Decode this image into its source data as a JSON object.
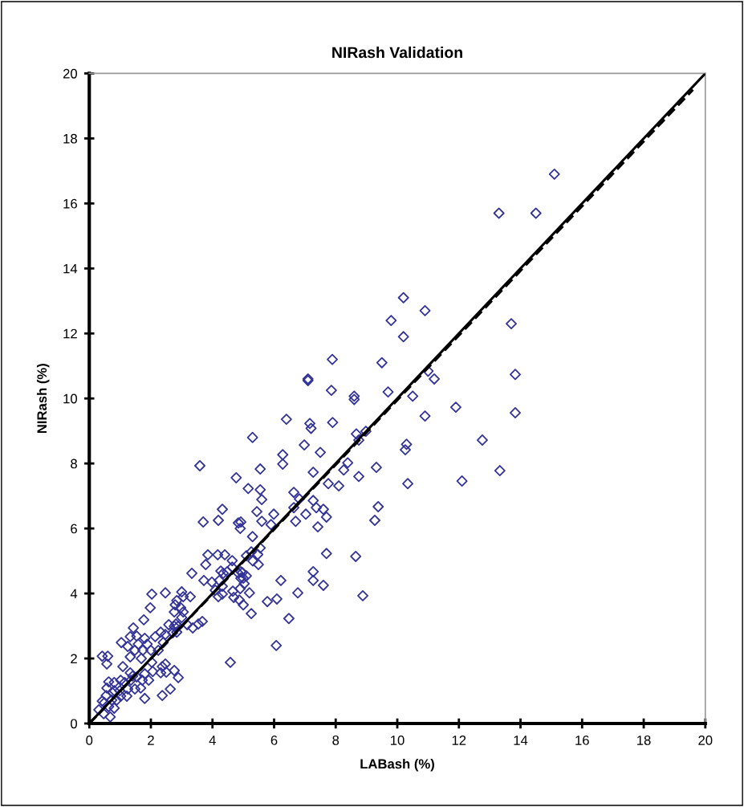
{
  "chart_data": {
    "type": "scatter",
    "title": "NIRash Validation",
    "xlabel": "LABash (%)",
    "ylabel": "NIRash (%)",
    "xlim": [
      0,
      20
    ],
    "ylim": [
      0,
      20
    ],
    "xticks": [
      0,
      2,
      4,
      6,
      8,
      10,
      12,
      14,
      16,
      18,
      20
    ],
    "yticks": [
      0,
      2,
      4,
      6,
      8,
      10,
      12,
      14,
      16,
      18,
      20
    ],
    "grid": false,
    "legend": false,
    "series": [
      {
        "color": "#333399",
        "marker": "diamond",
        "x": [
          15.1,
          13.3,
          14.5,
          10.2,
          10.9,
          9.8,
          13.7,
          10.2,
          9.5,
          7.89,
          7.1,
          7.1,
          7.86,
          8.6,
          8.6,
          9.7,
          11.0,
          11.2,
          10.5,
          11.9,
          10.9,
          6.4,
          7.16,
          7.2,
          7.9,
          8.67,
          8.75,
          8.98,
          5.3,
          6.98,
          7.5,
          6.28,
          6.28,
          5.55,
          7.27,
          8.39,
          8.26,
          8.75,
          9.32,
          10.3,
          10.26,
          12.76,
          5.16,
          5.55,
          5.6,
          7.76,
          8.1,
          10.34,
          12.1,
          6.64,
          6.82,
          5.44,
          5.99,
          5.6,
          5.9,
          6.64,
          6.7,
          7.03,
          7.27,
          7.37,
          7.6,
          7.7,
          7.42,
          9.38,
          9.27,
          7.7,
          8.65,
          7.27,
          7.27,
          7.6,
          6.22,
          6.77,
          8.88,
          5.78,
          6.09,
          6.48,
          6.07,
          5.3,
          5.47,
          5.26,
          5.1,
          5.31,
          5.49,
          4.92,
          4.92,
          5.0,
          5.1,
          5.03,
          5.2,
          5.0,
          5.26,
          13.83,
          13.83,
          13.33,
          3.59,
          4.77,
          4.32,
          3.7,
          4.19,
          4.84,
          4.9,
          5.55,
          3.85,
          4.17,
          4.4,
          3.78,
          4.64,
          4.64,
          3.33,
          4.27,
          4.35,
          4.48,
          4.82,
          4.97,
          4.92,
          3.72,
          3.98,
          4.22,
          4.32,
          4.09,
          4.19,
          4.32,
          4.66,
          4.9,
          4.69,
          4.87,
          4.58,
          2.03,
          2.47,
          1.98,
          1.77,
          1.43,
          1.33,
          1.54,
          1.04,
          1.25,
          1.8,
          1.88,
          1.59,
          1.48,
          1.74,
          2.0,
          2.14,
          1.33,
          1.69,
          2.32,
          2.47,
          2.4,
          2.24,
          2.58,
          2.81,
          3.0,
          3.05,
          3.28,
          3.0,
          2.76,
          2.79,
          2.84,
          2.97,
          3.05,
          2.76,
          2.71,
          2.89,
          2.84,
          3.18,
          3.36,
          3.54,
          3.67,
          2.03,
          2.37,
          2.06,
          2.32,
          2.5,
          2.47,
          2.76,
          2.89,
          2.63,
          2.37,
          1.8,
          1.93,
          1.72,
          1.54,
          1.41,
          1.09,
          1.33,
          1.35,
          1.15,
          1.02,
          0.81,
          1.48,
          1.67,
          1.8,
          1.25,
          1.22,
          0.99,
          0.81,
          0.63,
          0.42,
          0.6,
          0.57,
          0.57,
          0.76,
          0.55,
          0.42,
          0.49,
          0.73,
          0.63,
          0.81,
          0.31,
          0.47,
          0.68,
          1.02,
          0.89
        ],
        "values": [
          16.9,
          15.7,
          15.7,
          13.1,
          12.7,
          12.4,
          12.3,
          11.9,
          11.1,
          11.2,
          10.6,
          10.55,
          10.25,
          10.07,
          9.97,
          10.2,
          10.84,
          10.6,
          10.07,
          9.73,
          9.46,
          9.36,
          9.23,
          9.08,
          9.26,
          8.91,
          8.72,
          8.99,
          8.8,
          8.57,
          8.34,
          8.27,
          7.98,
          7.83,
          7.73,
          8.02,
          7.8,
          7.6,
          7.88,
          8.59,
          8.42,
          8.72,
          7.23,
          7.19,
          6.89,
          7.38,
          7.31,
          7.38,
          7.46,
          7.11,
          6.91,
          6.52,
          6.44,
          6.22,
          6.12,
          6.64,
          6.22,
          6.44,
          6.86,
          6.64,
          6.59,
          6.35,
          6.05,
          6.67,
          6.25,
          5.23,
          5.14,
          4.67,
          4.4,
          4.25,
          4.4,
          4.02,
          3.93,
          3.75,
          3.83,
          3.23,
          2.4,
          5.75,
          5.2,
          5.28,
          5.16,
          5.0,
          4.89,
          6.2,
          4.67,
          4.47,
          4.54,
          4.3,
          4.02,
          3.65,
          3.38,
          10.74,
          9.56,
          7.78,
          7.93,
          7.56,
          6.59,
          6.2,
          6.25,
          6.17,
          6.0,
          5.4,
          5.19,
          5.19,
          5.19,
          4.89,
          5.01,
          4.81,
          4.62,
          4.69,
          4.62,
          4.67,
          4.64,
          4.64,
          4.47,
          4.4,
          4.35,
          4.4,
          4.22,
          4.1,
          3.9,
          3.98,
          4.07,
          4.15,
          3.88,
          3.8,
          1.88,
          3.98,
          4.02,
          3.56,
          3.19,
          2.94,
          2.67,
          2.69,
          2.49,
          2.37,
          2.62,
          2.44,
          2.44,
          2.25,
          2.25,
          2.25,
          2.67,
          2.05,
          2.0,
          2.81,
          2.74,
          2.49,
          2.25,
          3.04,
          3.06,
          3.26,
          3.9,
          3.9,
          4.05,
          3.43,
          3.65,
          3.78,
          3.56,
          3.43,
          2.99,
          2.79,
          2.99,
          2.81,
          3.04,
          2.94,
          3.06,
          3.14,
          1.88,
          1.75,
          1.6,
          1.56,
          1.58,
          1.83,
          1.63,
          1.41,
          1.06,
          0.86,
          1.53,
          1.33,
          1.33,
          1.43,
          1.46,
          1.75,
          1.56,
          1.33,
          1.26,
          1.33,
          1.26,
          1.06,
          1.09,
          0.77,
          1.06,
          0.84,
          1.01,
          1.01,
          1.28,
          2.07,
          2.07,
          1.83,
          1.09,
          0.94,
          0.86,
          0.69,
          0.64,
          0.72,
          0.52,
          0.47,
          0.42,
          0.3,
          0.2,
          0.84,
          0.72
        ]
      },
      {
        "type": "line",
        "color": "#000000",
        "line_style": "dashed",
        "x": [
          0,
          19.6
        ],
        "values": [
          0,
          19.5
        ]
      },
      {
        "type": "line",
        "color": "#000000",
        "line_style": "solid",
        "x": [
          0,
          20
        ],
        "values": [
          0,
          20
        ]
      }
    ]
  }
}
